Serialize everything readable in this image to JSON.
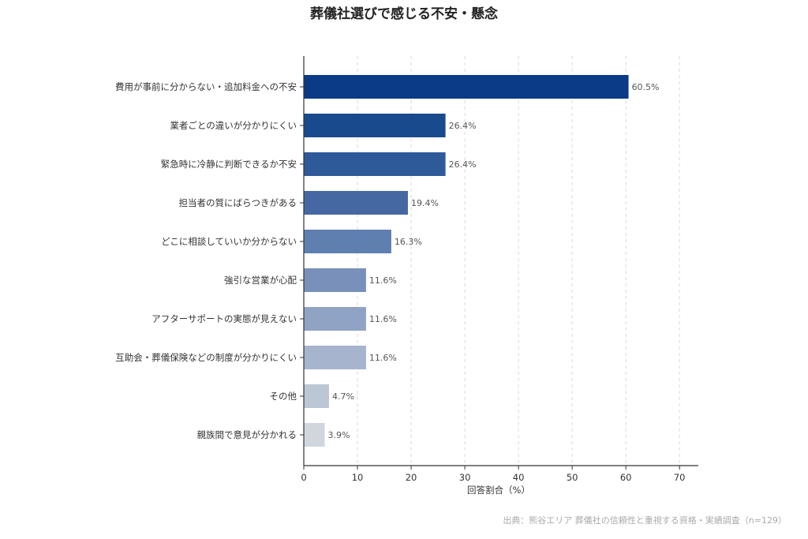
{
  "chart_data": {
    "type": "bar",
    "orientation": "horizontal",
    "title": "葬儀社選びで感じる不安・懸念",
    "xlabel": "回答割合（%）",
    "ylabel": "",
    "xlim": [
      0,
      73.5
    ],
    "xticks": [
      "0",
      "10",
      "20",
      "30",
      "40",
      "50",
      "60",
      "70"
    ],
    "grid": "vertical-dashed",
    "categories": [
      "費用が事前に分からない・追加料金への不安",
      "業者ごとの違いが分かりにくい",
      "緊急時に冷静に判断できるか不安",
      "担当者の質にばらつきがある",
      "どこに相談していいか分からない",
      "強引な営業が心配",
      "アフターサポートの実態が見えない",
      "互助会・葬儀保険などの制度が分かりにくい",
      "その他",
      "親族間で意見が分かれる"
    ],
    "values": [
      60.5,
      26.4,
      26.4,
      19.4,
      16.3,
      11.6,
      11.6,
      11.6,
      4.7,
      3.9
    ],
    "value_labels": [
      "60.5%",
      "26.4%",
      "26.4%",
      "19.4%",
      "16.3%",
      "11.6%",
      "11.6%",
      "11.6%",
      "4.7%",
      "3.9%"
    ],
    "colors": [
      "#0b3a87",
      "#1a4a8e",
      "#2e5a9a",
      "#4568a3",
      "#5f7fb1",
      "#7890ba",
      "#8fa3c4",
      "#a6b5cd",
      "#bcc7d6",
      "#d0d6de"
    ],
    "source": "出典：熊谷エリア 葬儀社の信頼性と重視する資格・実績調査（n=129）"
  }
}
